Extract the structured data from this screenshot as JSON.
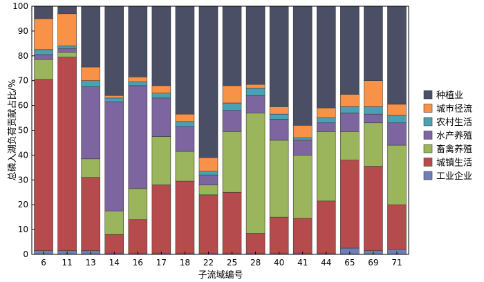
{
  "chart_data": {
    "type": "bar",
    "stacked": true,
    "title": "",
    "xlabel": "子流域编号",
    "ylabel": "总磷入湖负荷贡献占比/%",
    "ylim": [
      0,
      100
    ],
    "yticks": [
      0,
      10,
      20,
      30,
      40,
      50,
      60,
      70,
      80,
      90,
      100
    ],
    "grid": false,
    "legend_position": "right",
    "categories": [
      "6",
      "11",
      "13",
      "14",
      "16",
      "17",
      "18",
      "22",
      "25",
      "28",
      "40",
      "41",
      "44",
      "65",
      "69",
      "71"
    ],
    "series": [
      {
        "name": "工业企业",
        "color": "#6d7fb5",
        "values": [
          1.5,
          1.5,
          1.5,
          0.5,
          0.5,
          0.5,
          0.5,
          0.5,
          0.5,
          0.5,
          0.5,
          0.5,
          0.5,
          2.5,
          1.5,
          2.0
        ]
      },
      {
        "name": "城镇生活",
        "color": "#b64b4d",
        "values": [
          69.0,
          78.0,
          29.5,
          7.5,
          13.5,
          27.5,
          29.0,
          23.5,
          24.5,
          8.0,
          14.5,
          14.0,
          21.0,
          35.5,
          34.0,
          18.0
        ]
      },
      {
        "name": "畜禽养殖",
        "color": "#9bb55c",
        "values": [
          8.0,
          2.0,
          7.5,
          9.5,
          12.5,
          19.5,
          12.0,
          4.0,
          24.5,
          48.5,
          31.0,
          25.5,
          28.0,
          11.5,
          17.5,
          24.0
        ]
      },
      {
        "name": "水产养殖",
        "color": "#7d66a0",
        "values": [
          2.0,
          1.5,
          29.0,
          44.0,
          41.5,
          15.5,
          10.0,
          4.0,
          8.5,
          7.0,
          8.5,
          6.0,
          3.5,
          7.5,
          3.5,
          9.0
        ]
      },
      {
        "name": "农村生活",
        "color": "#4ba0b3",
        "values": [
          2.0,
          1.0,
          2.5,
          1.5,
          1.5,
          2.0,
          2.0,
          1.5,
          3.0,
          3.0,
          2.0,
          1.0,
          2.0,
          2.5,
          3.0,
          3.0
        ]
      },
      {
        "name": "城市径流",
        "color": "#f79248",
        "values": [
          12.5,
          13.0,
          5.5,
          1.0,
          2.0,
          3.0,
          3.0,
          5.5,
          7.0,
          1.5,
          3.0,
          5.0,
          4.0,
          5.0,
          10.5,
          4.5
        ]
      },
      {
        "name": "种植业",
        "color": "#4a4f66",
        "values": [
          5.0,
          3.0,
          24.5,
          36.0,
          28.5,
          32.0,
          43.5,
          61.0,
          32.0,
          31.5,
          40.5,
          48.0,
          41.0,
          35.5,
          30.0,
          39.5
        ]
      }
    ]
  }
}
